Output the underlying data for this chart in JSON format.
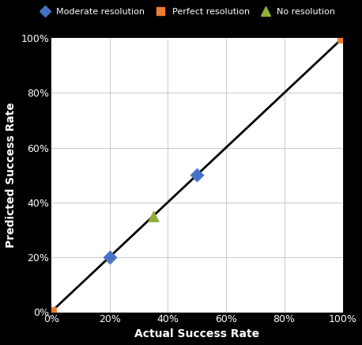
{
  "perfect_resolution_line": {
    "x": [
      0,
      1
    ],
    "y": [
      0,
      1
    ]
  },
  "moderate_resolution": {
    "x": [
      0.2,
      0.5
    ],
    "y": [
      0.2,
      0.5
    ]
  },
  "no_resolution": {
    "x": [
      0.35
    ],
    "y": [
      0.35
    ]
  },
  "perfect_points": {
    "x": [
      0,
      1.0
    ],
    "y": [
      0,
      1.0
    ]
  },
  "moderate_color": "#4472C4",
  "perfect_color": "#ED7D31",
  "no_resolution_color": "#8FAF3C",
  "line_color": "#000000",
  "background_color": "#000000",
  "plot_bg_color": "#FFFFFF",
  "xlabel": "Actual Success Rate",
  "ylabel": "Predicted Success Rate",
  "xlim": [
    0,
    1
  ],
  "ylim": [
    0,
    1
  ],
  "xticks": [
    0,
    0.2,
    0.4,
    0.6,
    0.8,
    1.0
  ],
  "yticks": [
    0,
    0.2,
    0.4,
    0.6,
    0.8,
    1.0
  ],
  "legend_labels": [
    "Moderate resolution",
    "Perfect resolution",
    "No resolution"
  ],
  "grid_color": "#C8C8C8",
  "label_fontsize": 10,
  "tick_fontsize": 9,
  "legend_fontsize": 8
}
